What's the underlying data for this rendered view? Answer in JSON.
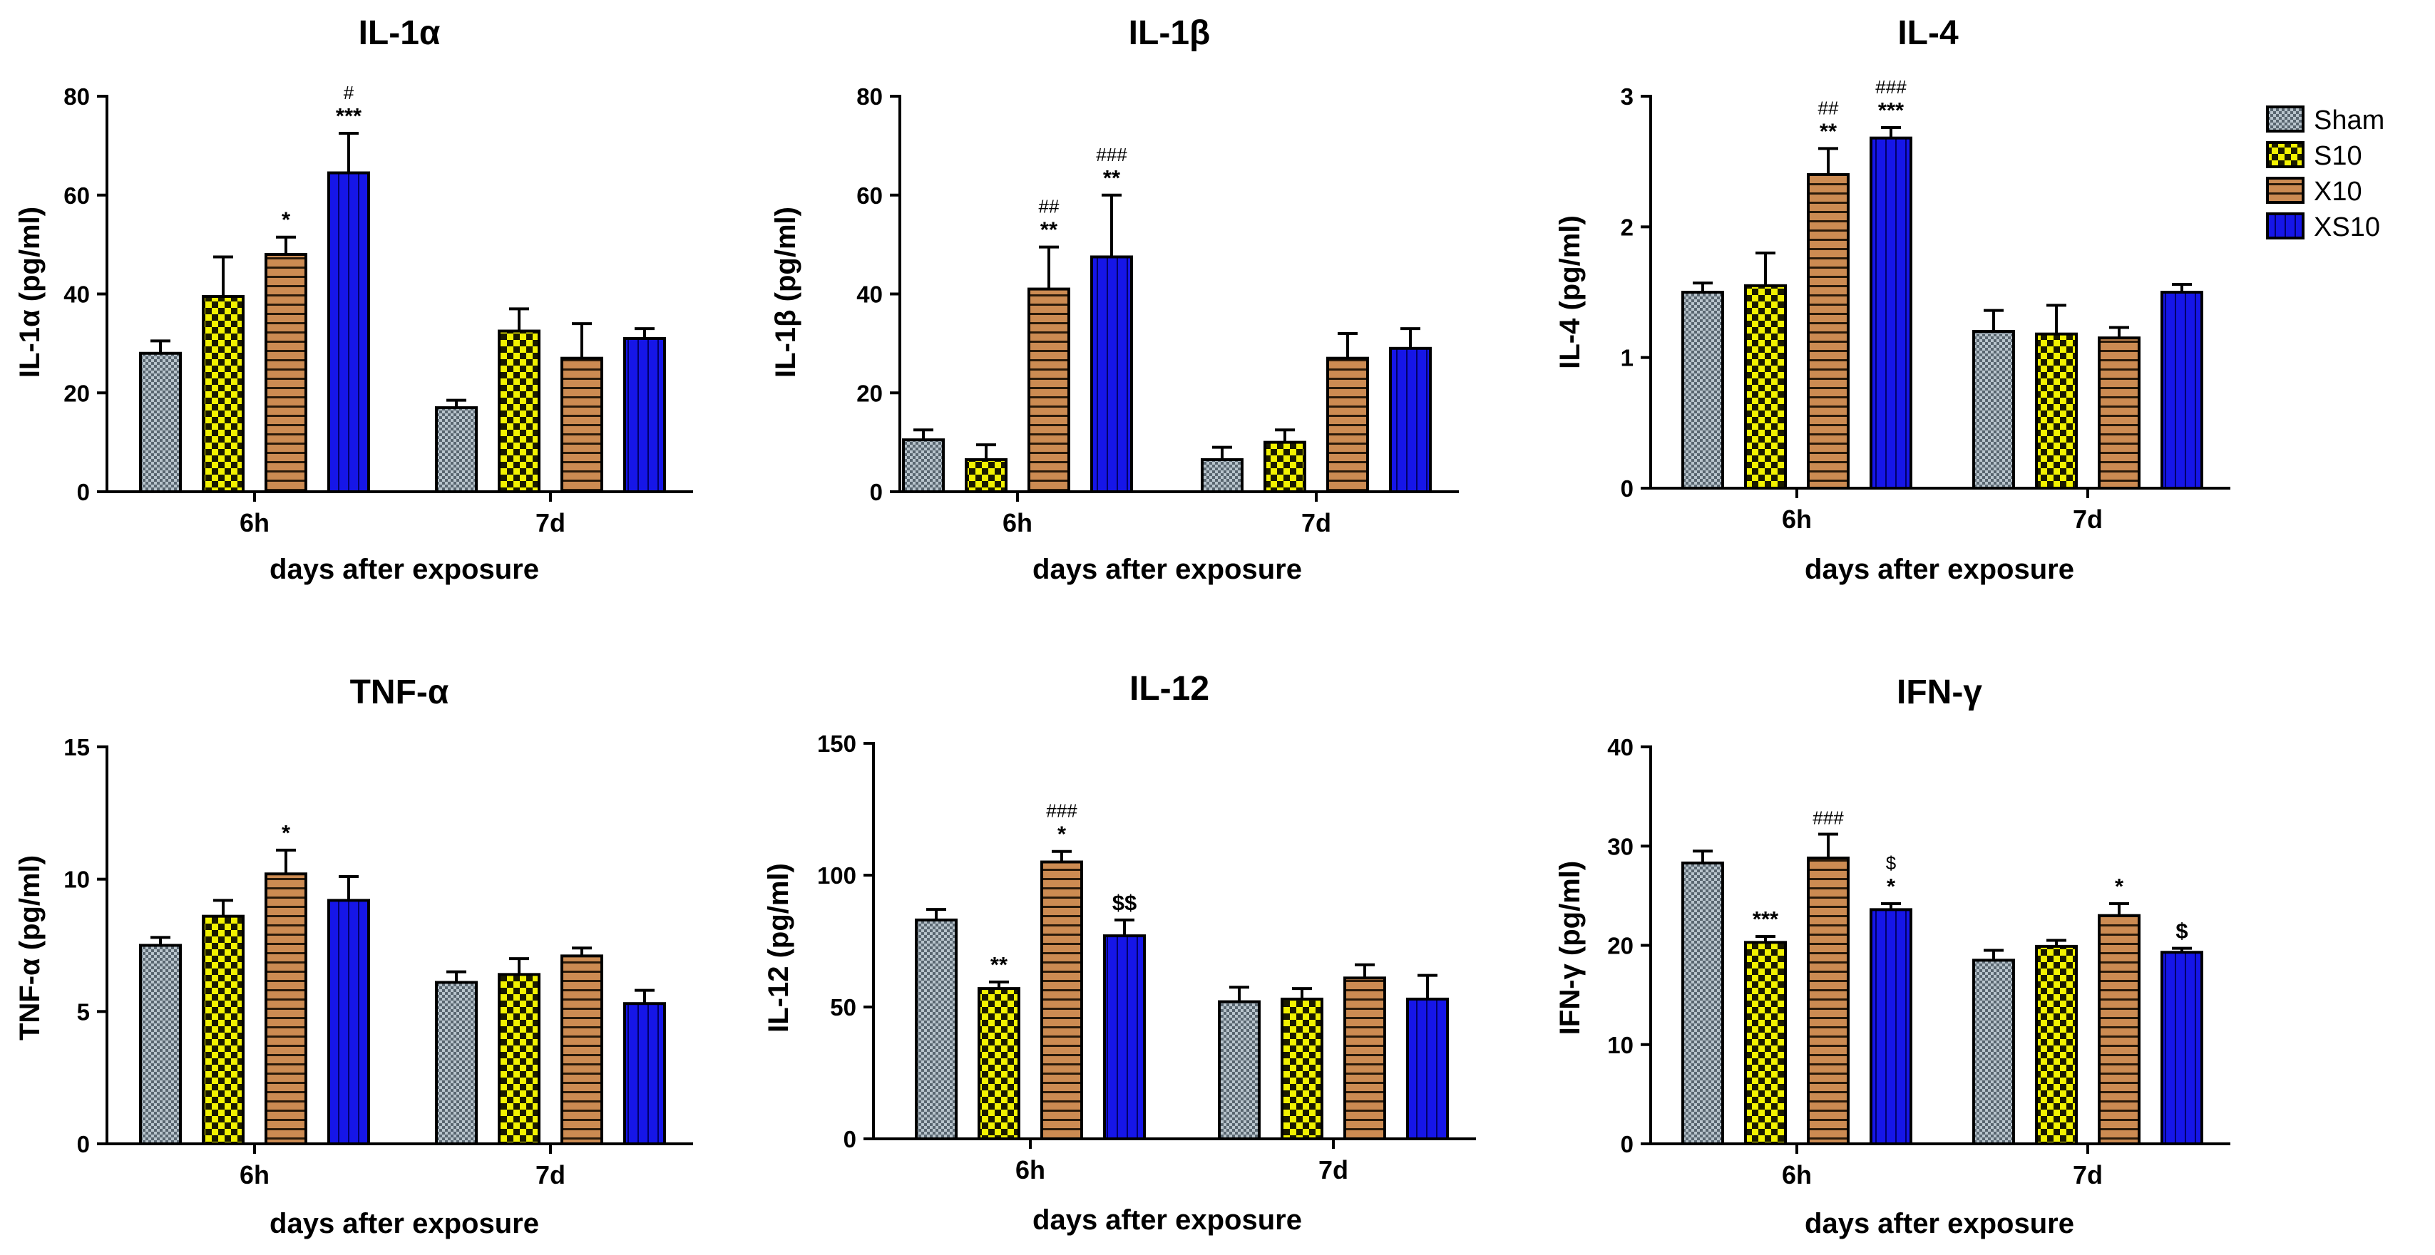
{
  "groups": [
    {
      "name": "Sham",
      "pattern": "crosshatch"
    },
    {
      "name": "S10",
      "pattern": "checker"
    },
    {
      "name": "X10",
      "pattern": "hstripe"
    },
    {
      "name": "XS10",
      "pattern": "vstripe"
    }
  ],
  "colors": {
    "sham": "#b8c4cc",
    "s10": "#f2f200",
    "x10": "#cc8b52",
    "xs10": "#1616e8"
  },
  "chart_data": [
    {
      "type": "bar",
      "title": "IL-1α",
      "ylabel": "IL-1α (pg/ml)",
      "xlabel": "days after exposure",
      "categories": [
        "6h",
        "7d"
      ],
      "ylim": [
        0,
        80
      ],
      "yticks": [
        0,
        20,
        40,
        60,
        80
      ],
      "series": [
        {
          "name": "Sham",
          "values": [
            28,
            17
          ],
          "errors": [
            2.5,
            1.5
          ]
        },
        {
          "name": "S10",
          "values": [
            39.5,
            32.5
          ],
          "errors": [
            8,
            4.5
          ]
        },
        {
          "name": "X10",
          "values": [
            48,
            27
          ],
          "errors": [
            3.5,
            7
          ]
        },
        {
          "name": "XS10",
          "values": [
            64.5,
            31
          ],
          "errors": [
            8,
            2
          ]
        }
      ],
      "annotations": [
        {
          "category": "6h",
          "series": "X10",
          "stars": "*",
          "hash": ""
        },
        {
          "category": "6h",
          "series": "XS10",
          "stars": "***",
          "hash": "#"
        }
      ]
    },
    {
      "type": "bar",
      "title": "IL-1β",
      "ylabel": "IL-1β (pg/ml)",
      "xlabel": "days after exposure",
      "categories": [
        "6h",
        "7d"
      ],
      "ylim": [
        0,
        80
      ],
      "yticks": [
        0,
        20,
        40,
        60,
        80
      ],
      "series": [
        {
          "name": "Sham",
          "values": [
            10.5,
            6.5
          ],
          "errors": [
            2,
            2.5
          ]
        },
        {
          "name": "S10",
          "values": [
            6.5,
            10
          ],
          "errors": [
            3,
            2.5
          ]
        },
        {
          "name": "X10",
          "values": [
            41,
            27
          ],
          "errors": [
            8.5,
            5
          ]
        },
        {
          "name": "XS10",
          "values": [
            47.5,
            29
          ],
          "errors": [
            12.5,
            4
          ]
        }
      ],
      "annotations": [
        {
          "category": "6h",
          "series": "X10",
          "stars": "**",
          "hash": "##"
        },
        {
          "category": "6h",
          "series": "XS10",
          "stars": "**",
          "hash": "###"
        }
      ]
    },
    {
      "type": "bar",
      "title": "IL-4",
      "ylabel": "IL-4 (pg/ml)",
      "xlabel": "days after exposure",
      "categories": [
        "6h",
        "7d"
      ],
      "ylim": [
        0,
        3
      ],
      "yticks": [
        0,
        1,
        2,
        3
      ],
      "series": [
        {
          "name": "Sham",
          "values": [
            1.5,
            1.2
          ],
          "errors": [
            0.07,
            0.16
          ]
        },
        {
          "name": "S10",
          "values": [
            1.55,
            1.18
          ],
          "errors": [
            0.25,
            0.22
          ]
        },
        {
          "name": "X10",
          "values": [
            2.4,
            1.15
          ],
          "errors": [
            0.2,
            0.08
          ]
        },
        {
          "name": "XS10",
          "values": [
            2.68,
            1.5
          ],
          "errors": [
            0.08,
            0.06
          ]
        }
      ],
      "annotations": [
        {
          "category": "6h",
          "series": "X10",
          "stars": "**",
          "hash": "##"
        },
        {
          "category": "6h",
          "series": "XS10",
          "stars": "***",
          "hash": "###"
        }
      ]
    },
    {
      "type": "bar",
      "title": "TNF-α",
      "ylabel": "TNF-α (pg/ml)",
      "xlabel": "days after exposure",
      "categories": [
        "6h",
        "7d"
      ],
      "ylim": [
        0,
        15
      ],
      "yticks": [
        0,
        5,
        10,
        15
      ],
      "series": [
        {
          "name": "Sham",
          "values": [
            7.5,
            6.1
          ],
          "errors": [
            0.3,
            0.4
          ]
        },
        {
          "name": "S10",
          "values": [
            8.6,
            6.4
          ],
          "errors": [
            0.6,
            0.6
          ]
        },
        {
          "name": "X10",
          "values": [
            10.2,
            7.1
          ],
          "errors": [
            0.9,
            0.3
          ]
        },
        {
          "name": "XS10",
          "values": [
            9.2,
            5.3
          ],
          "errors": [
            0.9,
            0.5
          ]
        }
      ],
      "annotations": [
        {
          "category": "6h",
          "series": "X10",
          "stars": "*",
          "hash": ""
        }
      ]
    },
    {
      "type": "bar",
      "title": "IL-12",
      "ylabel": "IL-12 (pg/ml)",
      "xlabel": "days after exposure",
      "categories": [
        "6h",
        "7d"
      ],
      "ylim": [
        0,
        150
      ],
      "yticks": [
        0,
        50,
        100,
        150
      ],
      "series": [
        {
          "name": "Sham",
          "values": [
            83,
            52
          ],
          "errors": [
            4,
            5.5
          ]
        },
        {
          "name": "S10",
          "values": [
            57,
            53
          ],
          "errors": [
            2.5,
            4
          ]
        },
        {
          "name": "X10",
          "values": [
            105,
            61
          ],
          "errors": [
            4,
            5
          ]
        },
        {
          "name": "XS10",
          "values": [
            77,
            53
          ],
          "errors": [
            6,
            9
          ]
        }
      ],
      "annotations": [
        {
          "category": "6h",
          "series": "S10",
          "stars": "**",
          "hash": ""
        },
        {
          "category": "6h",
          "series": "X10",
          "stars": "*",
          "hash": "###"
        },
        {
          "category": "6h",
          "series": "XS10",
          "stars": "$$",
          "hash": ""
        }
      ]
    },
    {
      "type": "bar",
      "title": "IFN-γ",
      "ylabel": "IFN-γ (pg/ml)",
      "xlabel": "days after exposure",
      "categories": [
        "6h",
        "7d"
      ],
      "ylim": [
        0,
        40
      ],
      "yticks": [
        0,
        10,
        20,
        30,
        40
      ],
      "series": [
        {
          "name": "Sham",
          "values": [
            28.3,
            18.5
          ],
          "errors": [
            1.2,
            1
          ]
        },
        {
          "name": "S10",
          "values": [
            20.3,
            19.9
          ],
          "errors": [
            0.6,
            0.6
          ]
        },
        {
          "name": "X10",
          "values": [
            28.8,
            23
          ],
          "errors": [
            2.4,
            1.2
          ]
        },
        {
          "name": "XS10",
          "values": [
            23.6,
            19.3
          ],
          "errors": [
            0.6,
            0.4
          ]
        }
      ],
      "annotations": [
        {
          "category": "6h",
          "series": "S10",
          "stars": "***",
          "hash": ""
        },
        {
          "category": "6h",
          "series": "X10",
          "stars": "",
          "hash": "###"
        },
        {
          "category": "6h",
          "series": "XS10",
          "stars": "*",
          "hash": "$"
        },
        {
          "category": "7d",
          "series": "X10",
          "stars": "*",
          "hash": ""
        },
        {
          "category": "7d",
          "series": "XS10",
          "stars": "$",
          "hash": ""
        }
      ]
    }
  ]
}
